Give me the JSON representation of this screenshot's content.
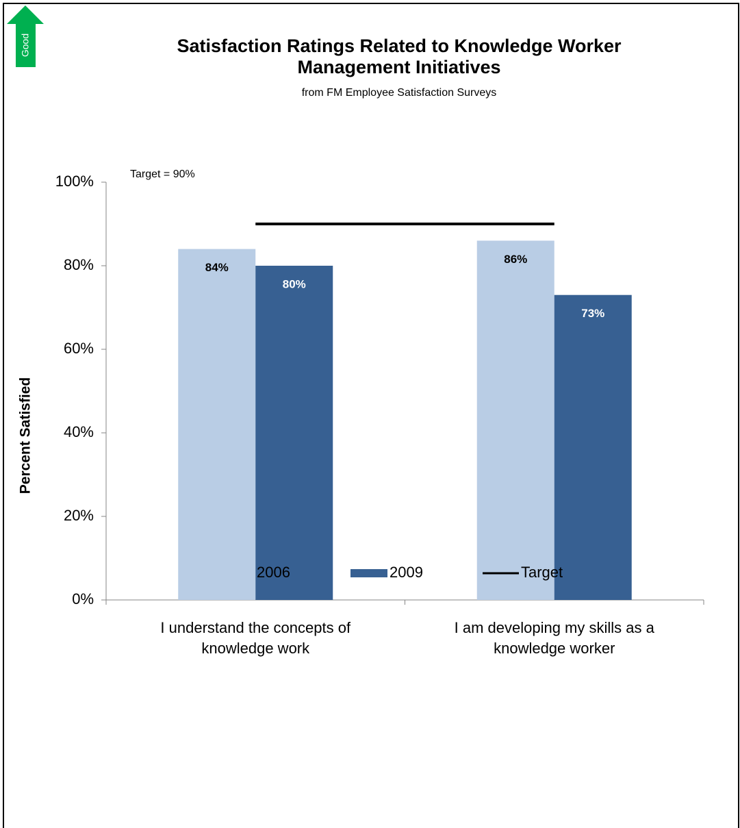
{
  "badge": "Good",
  "chart_data": {
    "type": "bar",
    "title": "Satisfaction Ratings Related to Knowledge Worker Management Initiatives",
    "subtitle": "from FM Employee Satisfaction Surveys",
    "annotation": "Target = 90%",
    "y_label": "Percent Satisfied",
    "categories": [
      "I understand the concepts of knowledge work",
      "I am developing my skills as a knowledge worker"
    ],
    "series": [
      {
        "name": "2006",
        "color": "#b9cde5",
        "values": [
          84,
          86
        ],
        "value_labels": [
          "84%",
          "86%"
        ],
        "label_color": "#000000"
      },
      {
        "name": "2009",
        "color": "#376092",
        "values": [
          80,
          73
        ],
        "value_labels": [
          "80%",
          "73%"
        ],
        "label_color": "#ffffff"
      },
      {
        "name": "Target",
        "type": "line",
        "color": "#000000",
        "values": [
          90,
          90
        ]
      }
    ],
    "ylim": [
      0,
      100
    ],
    "yticks": [
      {
        "value": 0,
        "label": "0%"
      },
      {
        "value": 20,
        "label": "20%"
      },
      {
        "value": 40,
        "label": "40%"
      },
      {
        "value": 60,
        "label": "60%"
      },
      {
        "value": 80,
        "label": "80%"
      },
      {
        "value": 100,
        "label": "100%"
      }
    ],
    "grid": false,
    "legend": "bottom"
  }
}
